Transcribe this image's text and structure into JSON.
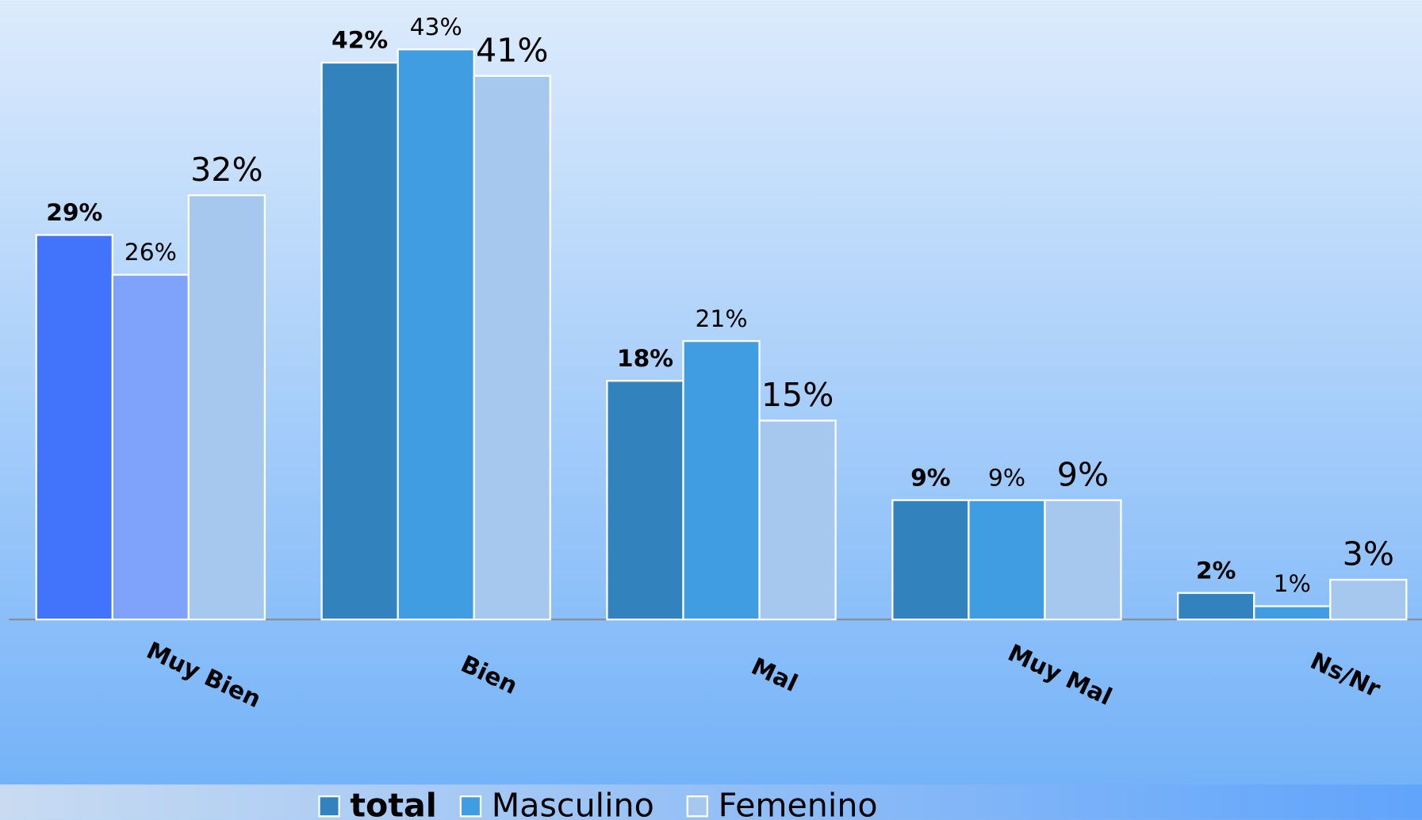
{
  "chart_data": {
    "type": "bar",
    "categories": [
      "Muy Bien",
      "Bien",
      "Mal",
      "Muy Mal",
      "Ns/Nr"
    ],
    "series": [
      {
        "name": "total",
        "color": "#3282bd",
        "colors": [
          "#4173fb",
          "#3282bd",
          "#3282bd",
          "#3282bd",
          "#3282bd"
        ],
        "values": [
          29,
          42,
          18,
          9,
          2
        ],
        "value_labels": [
          "29%",
          "42%",
          "18%",
          "9%",
          "2%"
        ]
      },
      {
        "name": "Masculino",
        "color": "#419de1",
        "colors": [
          "#7fa3fb",
          "#419de1",
          "#419de1",
          "#419de1",
          "#419de1"
        ],
        "values": [
          26,
          43,
          21,
          9,
          1
        ],
        "value_labels": [
          "26%",
          "43%",
          "21%",
          "9%",
          "1%"
        ]
      },
      {
        "name": "Femenino",
        "color": "#a7c8ee",
        "colors": [
          "#a7c8ee",
          "#a7c8ee",
          "#a7c8ee",
          "#a7c8ee",
          "#a7c8ee"
        ],
        "values": [
          32,
          41,
          15,
          9,
          3
        ],
        "value_labels": [
          "32%",
          "41%",
          "15%",
          "9%",
          "3%"
        ]
      }
    ],
    "ylim": [
      0,
      47
    ],
    "grid": false,
    "legend": "bottom"
  }
}
